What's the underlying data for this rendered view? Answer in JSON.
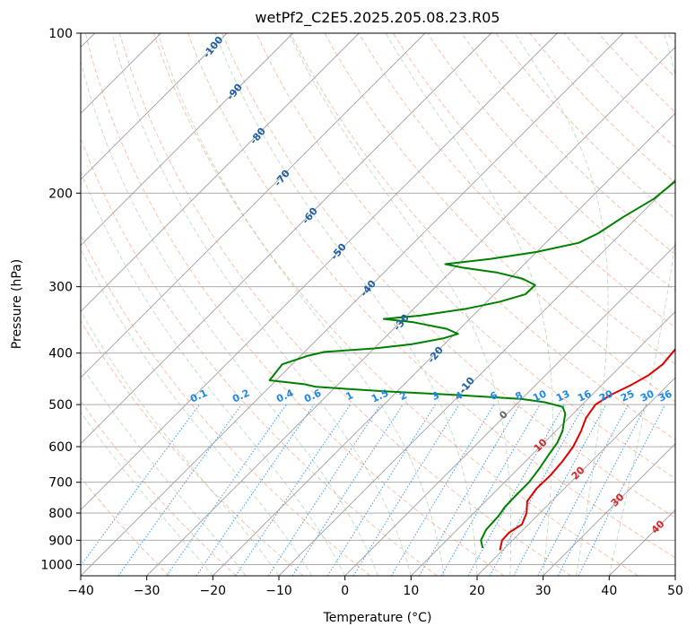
{
  "chart_data": {
    "type": "line",
    "subtype": "skew-t log-p diagram",
    "title": "wetPf2_C2E5.2025.205.08.23.R05",
    "xlabel": "Temperature (°C)",
    "ylabel": "Pressure (hPa)",
    "xlim": [
      -40,
      50
    ],
    "ylim": [
      1050,
      100
    ],
    "y_scale": "log",
    "grid": true,
    "x_ticks": [
      "−40",
      "−30",
      "−20",
      "−10",
      "0",
      "10",
      "20",
      "30",
      "40",
      "50"
    ],
    "y_ticks": [
      "100",
      "200",
      "300",
      "400",
      "500",
      "600",
      "700",
      "800",
      "900",
      "1000"
    ],
    "y_tick_values": [
      100,
      200,
      300,
      400,
      500,
      600,
      700,
      800,
      900,
      1000
    ],
    "series": [
      {
        "color": "#e00000",
        "points": [
          [
            940,
            19.6
          ],
          [
            900,
            18.4
          ],
          [
            870,
            18.3
          ],
          [
            840,
            19.0
          ],
          [
            800,
            18.0
          ],
          [
            760,
            16.3
          ],
          [
            720,
            15.8
          ],
          [
            680,
            15.9
          ],
          [
            640,
            15.6
          ],
          [
            600,
            15.0
          ],
          [
            560,
            13.8
          ],
          [
            530,
            12.6
          ],
          [
            500,
            12.0
          ],
          [
            480,
            12.8
          ],
          [
            460,
            14.4
          ],
          [
            440,
            15.6
          ],
          [
            420,
            16.1
          ],
          [
            400,
            15.8
          ],
          [
            370,
            15.4
          ],
          [
            340,
            14.6
          ],
          [
            315,
            13.2
          ],
          [
            300,
            12.4
          ],
          [
            280,
            12.0
          ],
          [
            265,
            11.5
          ],
          [
            245,
            9.8
          ],
          [
            225,
            8.0
          ],
          [
            205,
            6.4
          ],
          [
            185,
            5.3
          ],
          [
            165,
            4.7
          ],
          [
            145,
            4.4
          ],
          [
            132,
            4.4
          ],
          [
            122,
            5.4
          ],
          [
            112,
            6.9
          ],
          [
            105,
            7.7
          ],
          [
            100,
            8.2
          ]
        ]
      },
      {
        "color": "#008000",
        "points": [
          [
            930,
            16.6
          ],
          [
            900,
            15.2
          ],
          [
            860,
            14.4
          ],
          [
            810,
            14.2
          ],
          [
            780,
            13.8
          ],
          [
            740,
            13.7
          ],
          [
            700,
            13.7
          ],
          [
            660,
            13.2
          ],
          [
            620,
            12.5
          ],
          [
            590,
            12.0
          ],
          [
            560,
            11.0
          ],
          [
            540,
            9.9
          ],
          [
            520,
            8.8
          ],
          [
            505,
            7.4
          ],
          [
            495,
            4.0
          ],
          [
            488,
            0.0
          ],
          [
            480,
            -10.0
          ],
          [
            472,
            -22.0
          ],
          [
            463,
            -33.0
          ],
          [
            458,
            -35.0
          ],
          [
            454,
            -38.0
          ],
          [
            450,
            -41.0
          ],
          [
            420,
            -41.5
          ],
          [
            405,
            -39.0
          ],
          [
            398,
            -37.0
          ],
          [
            392,
            -30.0
          ],
          [
            385,
            -25.0
          ],
          [
            375,
            -21.0
          ],
          [
            368,
            -19.5
          ],
          [
            360,
            -22.0
          ],
          [
            350,
            -28.0
          ],
          [
            345,
            -33.0
          ],
          [
            340,
            -28.0
          ],
          [
            330,
            -22.0
          ],
          [
            320,
            -18.0
          ],
          [
            310,
            -15.3
          ],
          [
            298,
            -15.2
          ],
          [
            290,
            -18.0
          ],
          [
            282,
            -23.0
          ],
          [
            276,
            -29.0
          ],
          [
            272,
            -32.0
          ],
          [
            266,
            -26.0
          ],
          [
            258,
            -20.0
          ],
          [
            248,
            -15.0
          ],
          [
            238,
            -13.5
          ],
          [
            222,
            -12.2
          ],
          [
            205,
            -10.3
          ],
          [
            185,
            -9.5
          ],
          [
            165,
            -7.7
          ],
          [
            148,
            -5.5
          ],
          [
            135,
            -4.0
          ],
          [
            125,
            -3.0
          ],
          [
            115,
            -1.0
          ],
          [
            106,
            0.4
          ],
          [
            100,
            1.8
          ]
        ]
      }
    ],
    "annotations": {
      "dry_adiabat_labels": [
        "-100",
        "-90",
        "-80",
        "-70",
        "-60",
        "-50",
        "-40",
        "-30",
        "-20",
        "-10"
      ],
      "moist_adiabat_labels": [
        "0",
        "10",
        "20",
        "30",
        "40"
      ],
      "mixing_ratio_labels": [
        "0.1",
        "0.2",
        "0.4",
        "0.6",
        "1",
        "1.5",
        "2",
        "3",
        "4",
        "6",
        "8",
        "10",
        "13",
        "16",
        "20",
        "25",
        "30",
        "36"
      ],
      "mixing_ratio_values": [
        0.1,
        0.2,
        0.4,
        0.6,
        1,
        1.5,
        2,
        3,
        4,
        6,
        8,
        10,
        13,
        16,
        20,
        25,
        30,
        36
      ],
      "dry_adiabat_color": "#1f5fa0",
      "moist_adiabat_color": "#d62728",
      "mixing_ratio_color": "#1e88e5"
    }
  }
}
